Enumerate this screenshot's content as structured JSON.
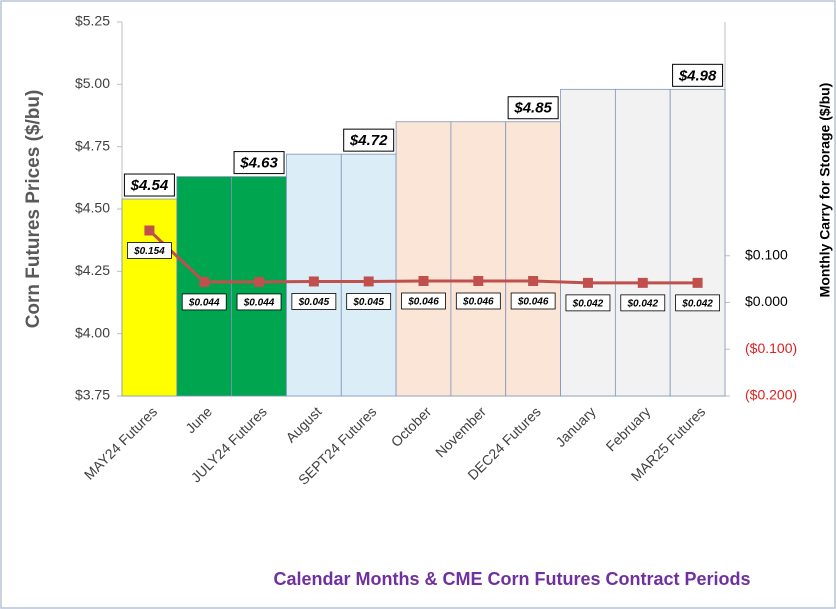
{
  "chart_data": {
    "type": "bar",
    "ylabel": "Corn Futures Prices ($/bu)",
    "y2label": "Monthly Carry for Storage ($/bu)",
    "xlabel": "Calendar Months & CME Corn Futures Contract Periods",
    "categories": [
      "MAY24 Futures",
      "June",
      "JULY24 Futures",
      "August",
      "SEPT24 Futures",
      "October",
      "November",
      "DEC24 Futures",
      "January",
      "February",
      "MAR25 Futures"
    ],
    "ylim": [
      3.75,
      5.25
    ],
    "yticks": [
      {
        "value": 3.75,
        "label": "$3.75"
      },
      {
        "value": 4.0,
        "label": "$4.00"
      },
      {
        "value": 4.25,
        "label": "$4.25"
      },
      {
        "value": 4.5,
        "label": "$4.50"
      },
      {
        "value": 4.75,
        "label": "$4.75"
      },
      {
        "value": 5.0,
        "label": "$5.00"
      },
      {
        "value": 5.25,
        "label": "$5.25"
      }
    ],
    "y2lim": [
      -0.2,
      0.6
    ],
    "y2ticks": [
      {
        "value": -0.2,
        "label": "($0.200)"
      },
      {
        "value": -0.1,
        "label": "($0.100)"
      },
      {
        "value": 0.0,
        "label": "$0.000"
      },
      {
        "value": 0.1,
        "label": "$0.100"
      }
    ],
    "series": [
      {
        "type": "bar",
        "colors": [
          "#ffff00",
          "#00a550",
          "#00a550",
          "#dbeef7",
          "#dbeef7",
          "#fbe5d6",
          "#fbe5d6",
          "#fbe5d6",
          "#f2f2f2",
          "#f2f2f2",
          "#f2f2f2"
        ],
        "values": [
          4.54,
          4.63,
          4.63,
          4.72,
          4.72,
          4.85,
          4.85,
          4.85,
          4.98,
          4.98,
          4.98
        ],
        "value_labels": [
          "$4.54",
          null,
          "$4.63",
          null,
          "$4.72",
          null,
          null,
          "$4.85",
          null,
          null,
          "$4.98"
        ]
      },
      {
        "type": "line",
        "axis": "y2",
        "color": "#c0504d",
        "values": [
          0.154,
          0.044,
          0.044,
          0.045,
          0.045,
          0.046,
          0.046,
          0.046,
          0.042,
          0.042,
          0.042
        ],
        "value_labels": [
          "$0.154",
          "$0.044",
          "$0.044",
          "$0.045",
          "$0.045",
          "$0.046",
          "$0.046",
          "$0.046",
          "$0.042",
          "$0.042",
          "$0.042"
        ]
      }
    ]
  }
}
